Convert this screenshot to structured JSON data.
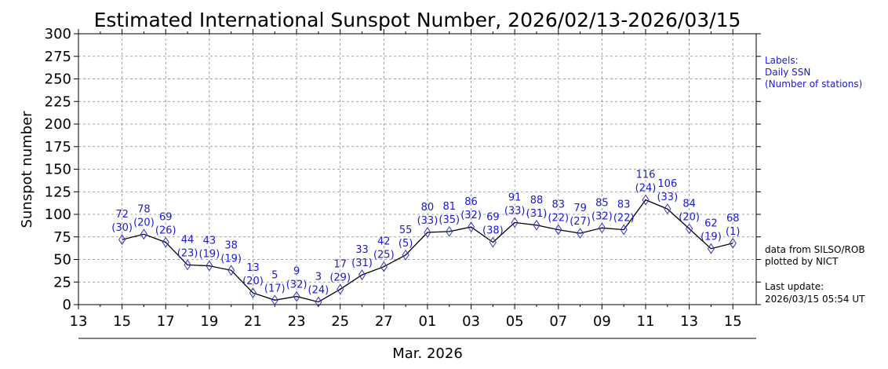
{
  "chart_data": {
    "type": "line",
    "title": "Estimated International Sunspot Number, 2026/02/13-2026/03/15",
    "xlabel": "Mar. 2026",
    "ylabel": "Sunspot number",
    "ylim": [
      0,
      300
    ],
    "yticks": [
      "0",
      "25",
      "50",
      "75",
      "100",
      "125",
      "150",
      "175",
      "200",
      "225",
      "250",
      "275",
      "300"
    ],
    "xticks": [
      "13",
      "15",
      "17",
      "19",
      "21",
      "23",
      "25",
      "27",
      "01",
      "03",
      "05",
      "07",
      "09",
      "11",
      "13",
      "15"
    ],
    "grid": true,
    "x": [
      "2026-02-15",
      "2026-02-16",
      "2026-02-17",
      "2026-02-18",
      "2026-02-19",
      "2026-02-20",
      "2026-02-21",
      "2026-02-22",
      "2026-02-23",
      "2026-02-24",
      "2026-02-25",
      "2026-02-26",
      "2026-02-27",
      "2026-02-28",
      "2026-03-01",
      "2026-03-02",
      "2026-03-03",
      "2026-03-04",
      "2026-03-05",
      "2026-03-06",
      "2026-03-07",
      "2026-03-08",
      "2026-03-09",
      "2026-03-10",
      "2026-03-11",
      "2026-03-12",
      "2026-03-13",
      "2026-03-14",
      "2026-03-15"
    ],
    "series": [
      {
        "values": [
          72,
          78,
          69,
          44,
          43,
          38,
          13,
          5,
          9,
          3,
          17,
          33,
          42,
          55,
          80,
          81,
          86,
          69,
          91,
          88,
          83,
          79,
          85,
          83,
          116,
          106,
          84,
          62,
          68
        ],
        "stations": [
          "(30)",
          "(20)",
          "(26)",
          "(23)",
          "(19)",
          "(19)",
          "(20)",
          "(17)",
          "(32)",
          "(24)",
          "(29)",
          "(31)",
          "(25)",
          "(5)",
          "(33)",
          "(35)",
          "(32)",
          "(38)",
          "(33)",
          "(31)",
          "(22)",
          "(27)",
          "(32)",
          "(22)",
          "(24)",
          "(33)",
          "(20)",
          "(19)",
          "(1)"
        ]
      }
    ],
    "colors": {
      "line": "#000000",
      "marker": "#3333cc",
      "labels": "#1a1acc"
    },
    "legend_note": [
      "Labels:",
      "Daily SSN",
      "(Number of stations)"
    ],
    "source_note": [
      "data from SILSO/ROB",
      "plotted by NICT"
    ],
    "update_note": [
      "Last update:",
      "2026/03/15 05:54 UT"
    ]
  }
}
